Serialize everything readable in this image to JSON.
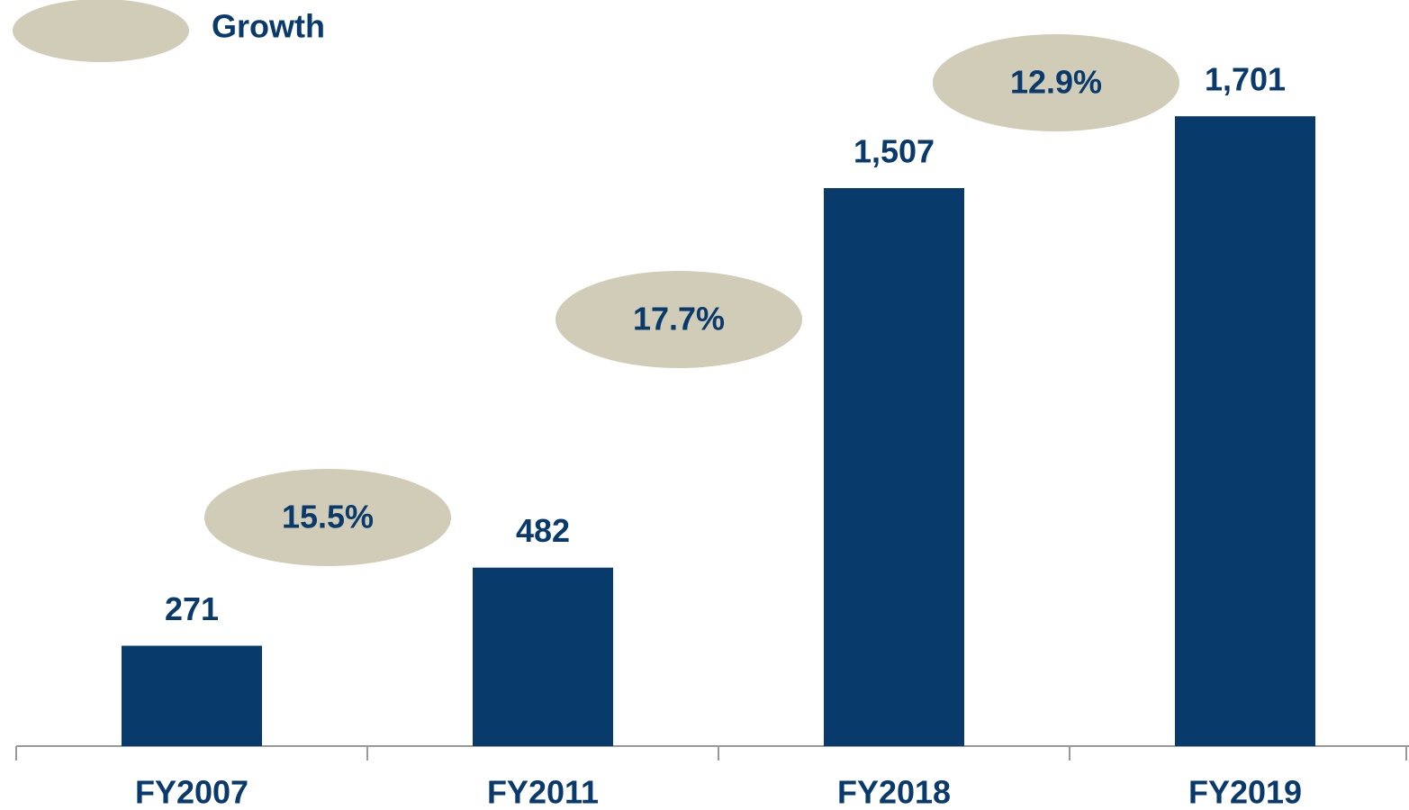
{
  "chart_data": {
    "type": "bar",
    "categories": [
      "FY2007",
      "FY2011",
      "FY2018",
      "FY2019"
    ],
    "values": [
      271,
      482,
      1507,
      1701
    ],
    "value_labels": [
      "271",
      "482",
      "1,507",
      "1,701"
    ],
    "color": "#083a6b",
    "ylim": [
      0,
      2015
    ],
    "growth": {
      "name": "Growth",
      "color": "#d0ccb8",
      "values": [
        15.5,
        17.7,
        12.9
      ],
      "value_labels": [
        "15.5%",
        "17.7%",
        "12.9%"
      ]
    }
  }
}
